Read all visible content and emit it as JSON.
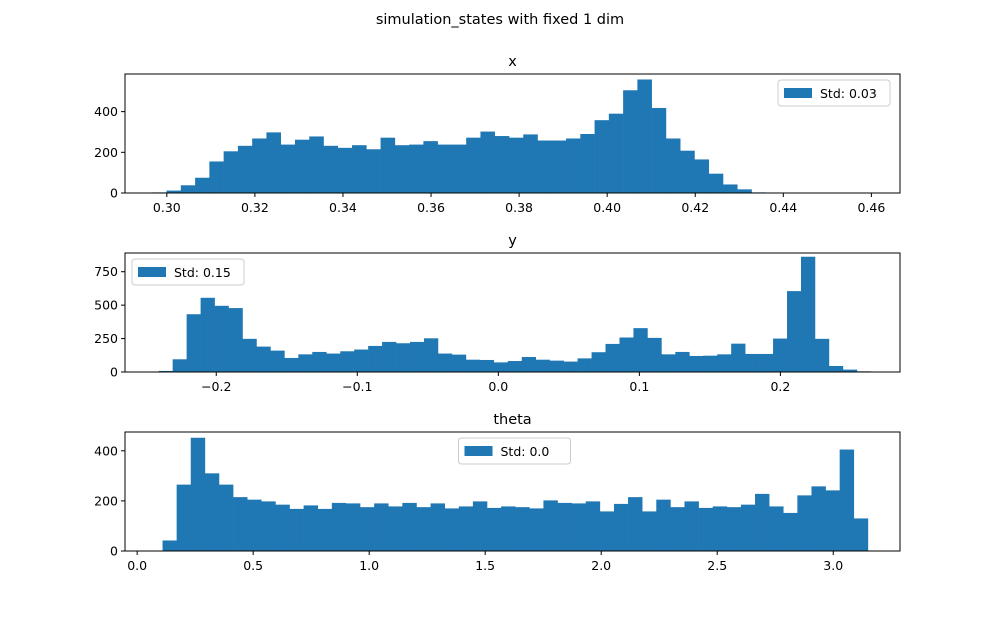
{
  "suptitle": "simulation_states with fixed 1 dim",
  "colors": {
    "bar": "#1f77b4",
    "axis": "#000000",
    "legend_border": "#cccccc"
  },
  "chart_data": [
    {
      "type": "bar",
      "title": "x",
      "legend": {
        "label": "Std: 0.03",
        "placement": "upper right"
      },
      "xlim": [
        0.2905,
        0.4665
      ],
      "ylim": [
        0,
        585
      ],
      "xticks": [
        0.3,
        0.32,
        0.34,
        0.36,
        0.38,
        0.4,
        0.42,
        0.44,
        0.46
      ],
      "xtick_labels": [
        "0.30",
        "0.32",
        "0.34",
        "0.36",
        "0.38",
        "0.40",
        "0.42",
        "0.44",
        "0.46"
      ],
      "yticks": [
        0,
        200,
        400
      ],
      "ytick_labels": [
        "0",
        "200",
        "400"
      ],
      "bin_start": 0.2967,
      "bin_width": 0.00324,
      "values": [
        3,
        12,
        38,
        75,
        155,
        205,
        232,
        268,
        298,
        238,
        262,
        278,
        232,
        222,
        235,
        215,
        272,
        235,
        238,
        255,
        238,
        238,
        272,
        302,
        280,
        272,
        288,
        258,
        258,
        268,
        290,
        358,
        390,
        505,
        558,
        418,
        268,
        208,
        165,
        95,
        42,
        18,
        3,
        0,
        0,
        0,
        0,
        0,
        0,
        1
      ]
    },
    {
      "type": "bar",
      "title": "y",
      "legend": {
        "label": "Std: 0.15",
        "placement": "upper left"
      },
      "xlim": [
        -0.2647,
        0.2848
      ],
      "ylim": [
        0,
        890
      ],
      "xticks": [
        -0.2,
        -0.1,
        0.0,
        0.1,
        0.2
      ],
      "xtick_labels": [
        "−0.2",
        "−0.1",
        "0.0",
        "0.1",
        "0.2"
      ],
      "yticks": [
        0,
        250,
        500,
        750
      ],
      "ytick_labels": [
        "0",
        "250",
        "500",
        "750"
      ],
      "bin_start": -0.2408,
      "bin_width": 0.0099,
      "values": [
        8,
        95,
        432,
        555,
        495,
        478,
        248,
        190,
        160,
        105,
        132,
        150,
        138,
        155,
        168,
        195,
        225,
        215,
        225,
        252,
        138,
        130,
        92,
        90,
        72,
        82,
        112,
        92,
        85,
        78,
        102,
        148,
        210,
        258,
        328,
        255,
        132,
        150,
        120,
        122,
        132,
        212,
        135,
        135,
        250,
        605,
        862,
        248,
        45,
        18,
        5
      ]
    },
    {
      "type": "bar",
      "title": "theta",
      "legend": {
        "label": "Std: 0.0",
        "placement": "upper center"
      },
      "xlim": [
        -0.0524,
        3.2878
      ],
      "ylim": [
        0,
        475
      ],
      "xticks": [
        0.0,
        0.5,
        1.0,
        1.5,
        2.0,
        2.5,
        3.0
      ],
      "xtick_labels": [
        "0.0",
        "0.5",
        "1.0",
        "1.5",
        "2.0",
        "2.5",
        "3.0"
      ],
      "yticks": [
        0,
        200,
        400
      ],
      "ytick_labels": [
        "0",
        "200",
        "400"
      ],
      "bin_start": 0.1094,
      "bin_width": 0.0608,
      "values": [
        42,
        265,
        452,
        310,
        265,
        215,
        205,
        198,
        185,
        168,
        182,
        168,
        192,
        190,
        175,
        190,
        178,
        192,
        175,
        190,
        170,
        178,
        198,
        172,
        178,
        175,
        170,
        202,
        192,
        190,
        198,
        158,
        188,
        215,
        158,
        205,
        175,
        198,
        172,
        178,
        175,
        185,
        228,
        178,
        152,
        222,
        258,
        242,
        405,
        130
      ]
    }
  ]
}
